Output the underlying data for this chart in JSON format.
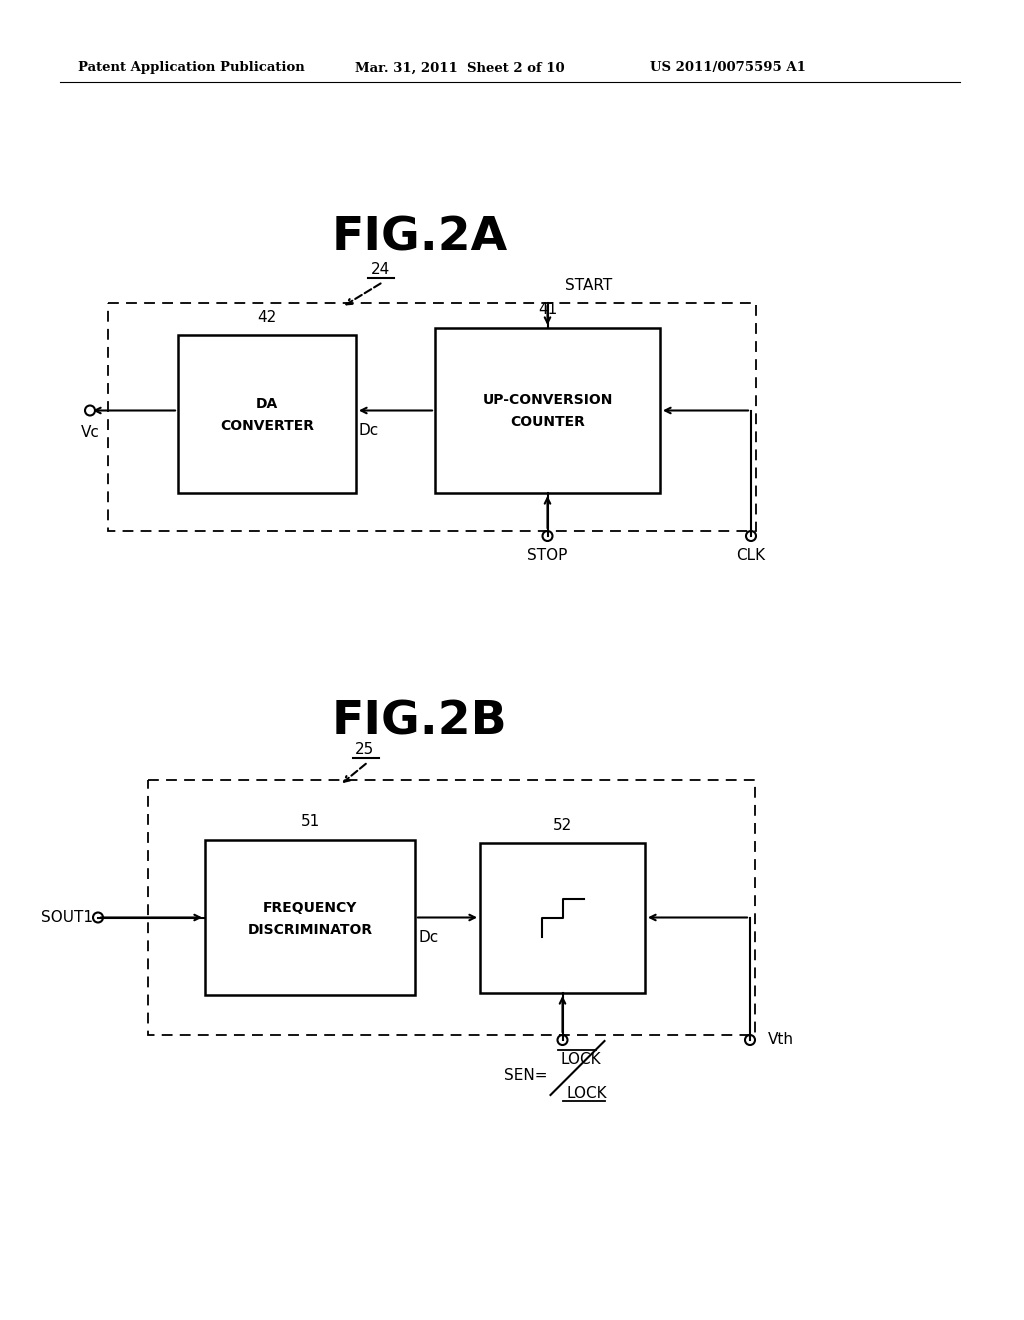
{
  "bg_color": "#ffffff",
  "header_left": "Patent Application Publication",
  "header_mid": "Mar. 31, 2011  Sheet 2 of 10",
  "header_right": "US 2011/0075595 A1",
  "fig2a_title": "FIG.2A",
  "fig2b_title": "FIG.2B",
  "label_24": "24",
  "label_25": "25",
  "label_41": "41",
  "label_42": "42",
  "label_51": "51",
  "label_52": "52",
  "box41_line1": "UP-CONVERSION",
  "box41_line2": "COUNTER",
  "box42_line1": "DA",
  "box42_line2": "CONVERTER",
  "box51_line1": "FREQUENCY",
  "box51_line2": "DISCRIMINATOR",
  "start_text": "START",
  "stop_text": "STOP",
  "clk_text": "CLK",
  "vc_text": "Vc",
  "dc_text": "Dc",
  "sout1_text": "SOUT1",
  "lock_text": "LOCK",
  "lock_bar_text": "LOCK",
  "sen_text": "SEN=",
  "vth_text": "Vth"
}
